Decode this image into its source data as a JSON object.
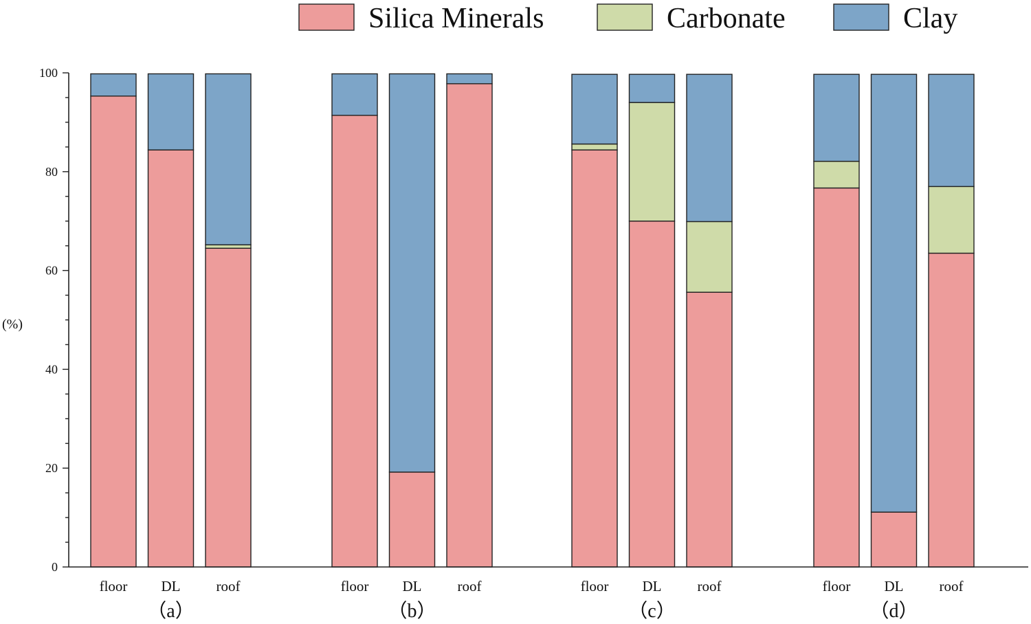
{
  "chart_data": {
    "type": "bar",
    "stacked": true,
    "ylabel": "(%)",
    "ylim": [
      0,
      100
    ],
    "yticks": [
      0,
      20,
      40,
      60,
      80,
      100
    ],
    "legend_position": "top-right",
    "series": [
      {
        "name": "Silica Minerals",
        "color": "#ed9c9b"
      },
      {
        "name": "Carbonate",
        "color": "#cfdba9"
      },
      {
        "name": "Clay",
        "color": "#7da5c8"
      }
    ],
    "groups": [
      {
        "label": "（a）",
        "bars": [
          {
            "label": "floor",
            "values": [
              95.3,
              0,
              4.5
            ]
          },
          {
            "label": "DL",
            "values": [
              84.4,
              0,
              15.4
            ]
          },
          {
            "label": "roof",
            "values": [
              64.5,
              0.7,
              34.6
            ]
          }
        ]
      },
      {
        "label": "（b）",
        "bars": [
          {
            "label": "floor",
            "values": [
              91.4,
              0,
              8.4
            ]
          },
          {
            "label": "DL",
            "values": [
              19.2,
              0,
              80.6
            ]
          },
          {
            "label": "roof",
            "values": [
              97.8,
              0,
              2.0
            ]
          }
        ]
      },
      {
        "label": "（c）",
        "bars": [
          {
            "label": "floor",
            "values": [
              84.4,
              1.2,
              14.1
            ]
          },
          {
            "label": "DL",
            "values": [
              70.0,
              24.0,
              5.7
            ]
          },
          {
            "label": "roof",
            "values": [
              55.6,
              14.3,
              29.8
            ]
          }
        ]
      },
      {
        "label": "（d）",
        "bars": [
          {
            "label": "floor",
            "values": [
              76.7,
              5.4,
              17.6
            ]
          },
          {
            "label": "DL",
            "values": [
              11.1,
              0,
              88.6
            ]
          },
          {
            "label": "roof",
            "values": [
              63.5,
              13.5,
              22.7
            ]
          }
        ]
      }
    ]
  }
}
